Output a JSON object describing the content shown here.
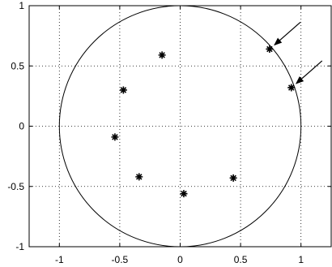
{
  "chart_data": {
    "type": "scatter",
    "title": "",
    "xlabel": "",
    "ylabel": "",
    "xlim": [
      -1.25,
      1.25
    ],
    "ylim": [
      -1,
      1
    ],
    "x_ticks": [
      -1,
      -0.5,
      0,
      0.5,
      1
    ],
    "x_tick_labels": [
      "-1",
      "-0.5",
      "0",
      "0.5",
      "1"
    ],
    "y_ticks": [
      -1,
      -0.5,
      0,
      0.5,
      1
    ],
    "y_tick_labels": [
      "-1",
      "-0.5",
      "0",
      "0.5",
      "1"
    ],
    "grid": true,
    "grid_style": "dotted",
    "marker": "*",
    "marker_color": "#000000",
    "reference_circle": {
      "cx": 0,
      "cy": 0,
      "r": 1
    },
    "series": [
      {
        "points": [
          {
            "x": -0.15,
            "y": 0.59
          },
          {
            "x": -0.47,
            "y": 0.3
          },
          {
            "x": 0.74,
            "y": 0.64
          },
          {
            "x": 0.92,
            "y": 0.32
          },
          {
            "x": -0.54,
            "y": -0.09
          },
          {
            "x": -0.34,
            "y": -0.42
          },
          {
            "x": 0.03,
            "y": -0.56
          },
          {
            "x": 0.44,
            "y": -0.43
          }
        ]
      }
    ],
    "annotations": [
      {
        "type": "arrow",
        "target": {
          "x": 0.74,
          "y": 0.64
        }
      },
      {
        "type": "arrow",
        "target": {
          "x": 0.92,
          "y": 0.32
        }
      }
    ]
  }
}
